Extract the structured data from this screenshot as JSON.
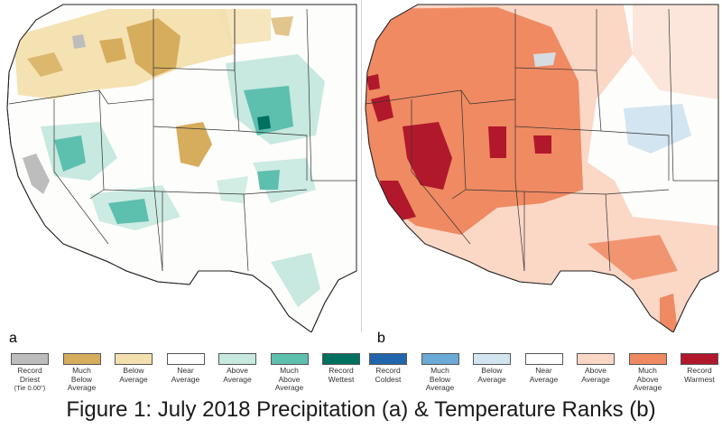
{
  "panels": {
    "a": {
      "letter": "a",
      "theme": "precipitation"
    },
    "b": {
      "letter": "b",
      "theme": "temperature"
    }
  },
  "precip_legend": [
    {
      "label": "Record\nDriest",
      "sub": "(Tie 0.00\")",
      "color": "#bdbdbd"
    },
    {
      "label": "Much\nBelow\nAverage",
      "color": "#d6ad5d"
    },
    {
      "label": "Below\nAverage",
      "color": "#f4e0ae"
    },
    {
      "label": "Near\nAverage",
      "color": "#ffffff"
    },
    {
      "label": "Above\nAverage",
      "color": "#c7e9df"
    },
    {
      "label": "Much\nAbove\nAverage",
      "color": "#5dbfae"
    },
    {
      "label": "Record\nWettest",
      "color": "#01705f"
    }
  ],
  "temp_legend": [
    {
      "label": "Record\nColdest",
      "color": "#2166ac"
    },
    {
      "label": "Much\nBelow\nAverage",
      "color": "#6aaad6"
    },
    {
      "label": "Below\nAverage",
      "color": "#d3e5f1"
    },
    {
      "label": "Near\nAverage",
      "color": "#ffffff"
    },
    {
      "label": "Above\nAverage",
      "color": "#fbd7c6"
    },
    {
      "label": "Much\nAbove\nAverage",
      "color": "#ef8a62"
    },
    {
      "label": "Record\nWarmest",
      "color": "#b2182b"
    }
  ],
  "caption": "Figure 1: July 2018 Precipitation (a) & Temperature Ranks (b)"
}
